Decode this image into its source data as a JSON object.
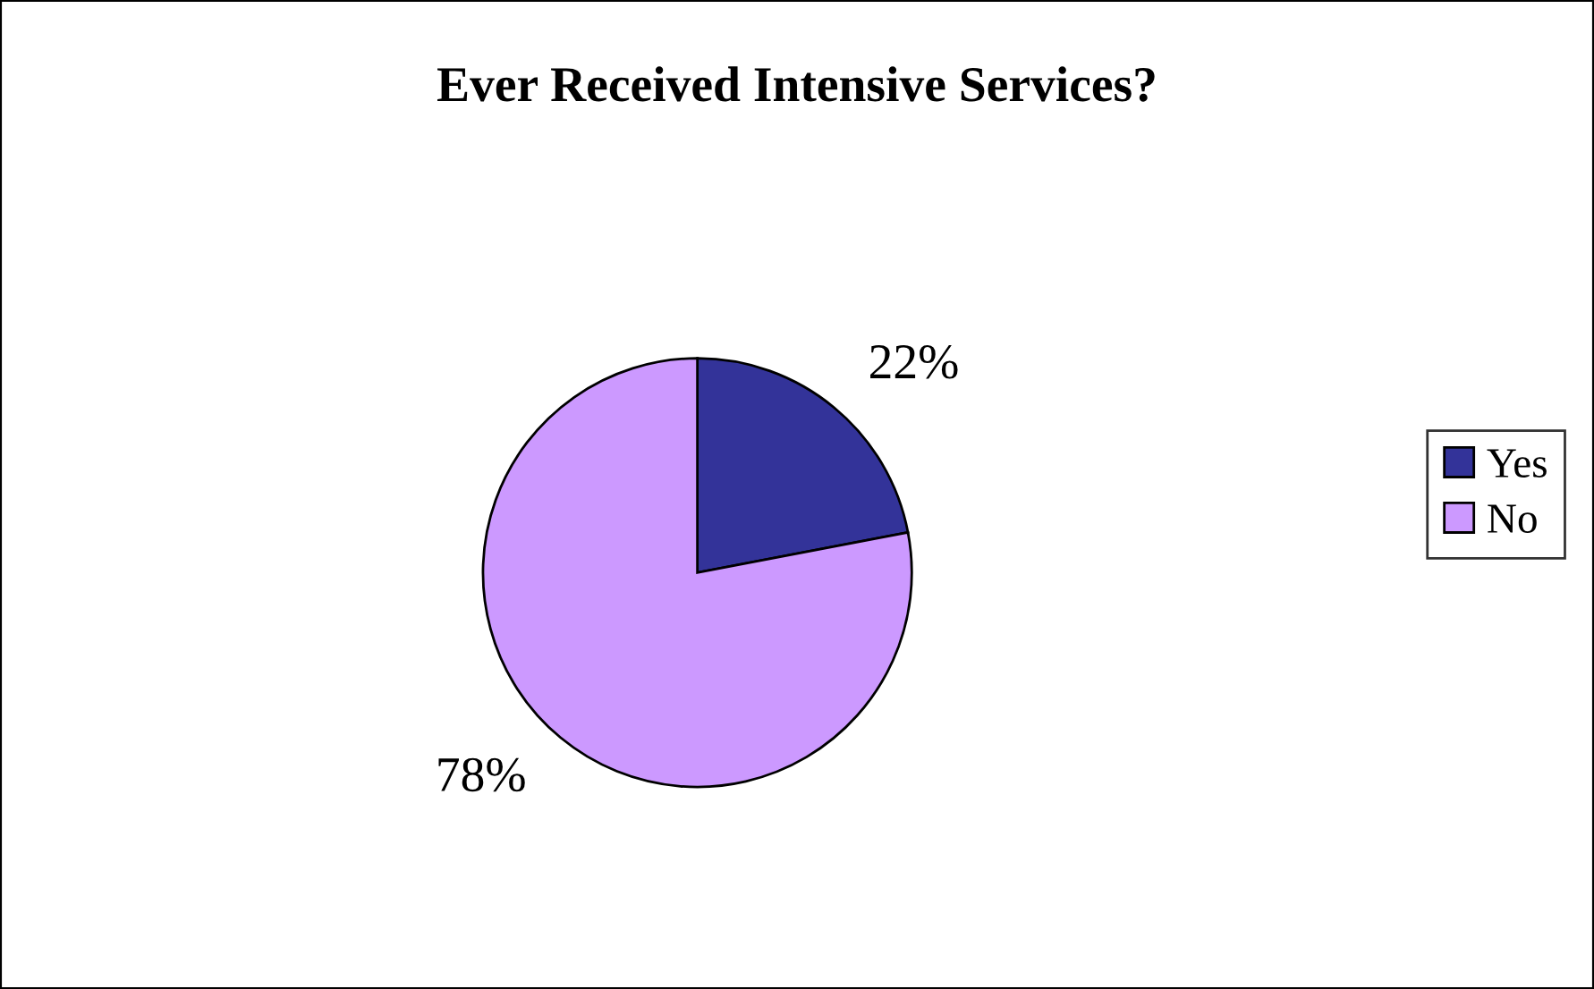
{
  "chart_data": {
    "type": "pie",
    "title": "Ever Received Intensive Services?",
    "categories": [
      "Yes",
      "No"
    ],
    "values": [
      22,
      78
    ],
    "value_labels": [
      "22%",
      "78%"
    ],
    "colors": [
      "#333399",
      "#cc99ff"
    ],
    "legend": "right"
  }
}
